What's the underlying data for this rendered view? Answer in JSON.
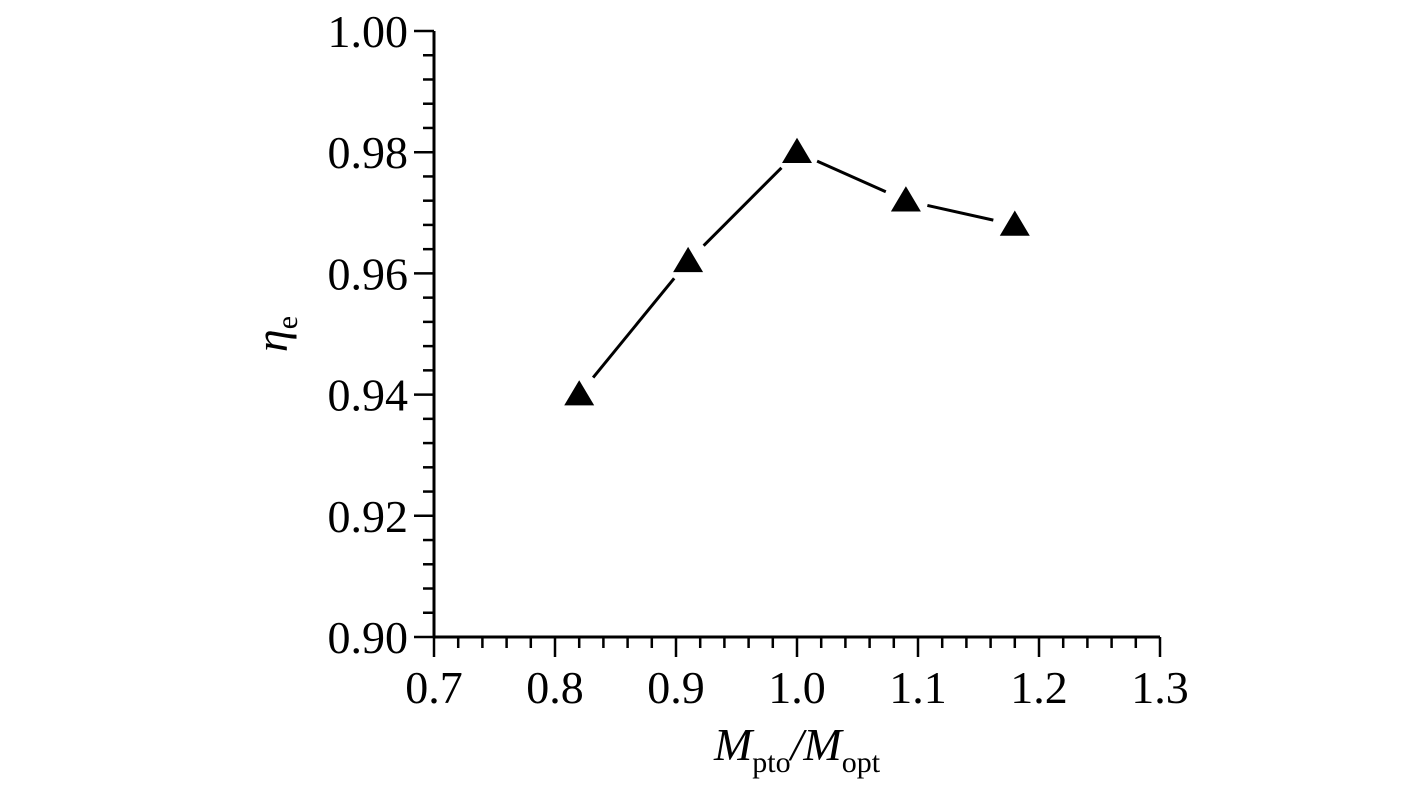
{
  "chart_data": {
    "type": "line",
    "title": "",
    "x_axis": {
      "label_main": "M",
      "label_sub1": "pto",
      "label_sep": "/M",
      "label_sub2": "opt",
      "range": [
        0.7,
        1.3
      ],
      "major_ticks": [
        0.7,
        0.8,
        0.9,
        1.0,
        1.1,
        1.2,
        1.3
      ],
      "tick_labels": [
        "0.7",
        "0.8",
        "0.9",
        "1.0",
        "1.1",
        "1.2",
        "1.3"
      ],
      "minor_step": 0.02
    },
    "y_axis": {
      "label_main": "η",
      "label_sub": "e",
      "range": [
        0.9,
        1.0
      ],
      "major_ticks": [
        0.9,
        0.92,
        0.94,
        0.96,
        0.98,
        1.0
      ],
      "tick_labels": [
        "0.90",
        "0.92",
        "0.94",
        "0.96",
        "0.98",
        "1.00"
      ],
      "minor_step": 0.004
    },
    "grid": false,
    "legend": "none",
    "series": [
      {
        "marker": "triangle",
        "color": "#000000",
        "x": [
          0.82,
          0.91,
          1.0,
          1.09,
          1.18
        ],
        "y": [
          0.94,
          0.962,
          0.98,
          0.972,
          0.968
        ]
      }
    ]
  }
}
